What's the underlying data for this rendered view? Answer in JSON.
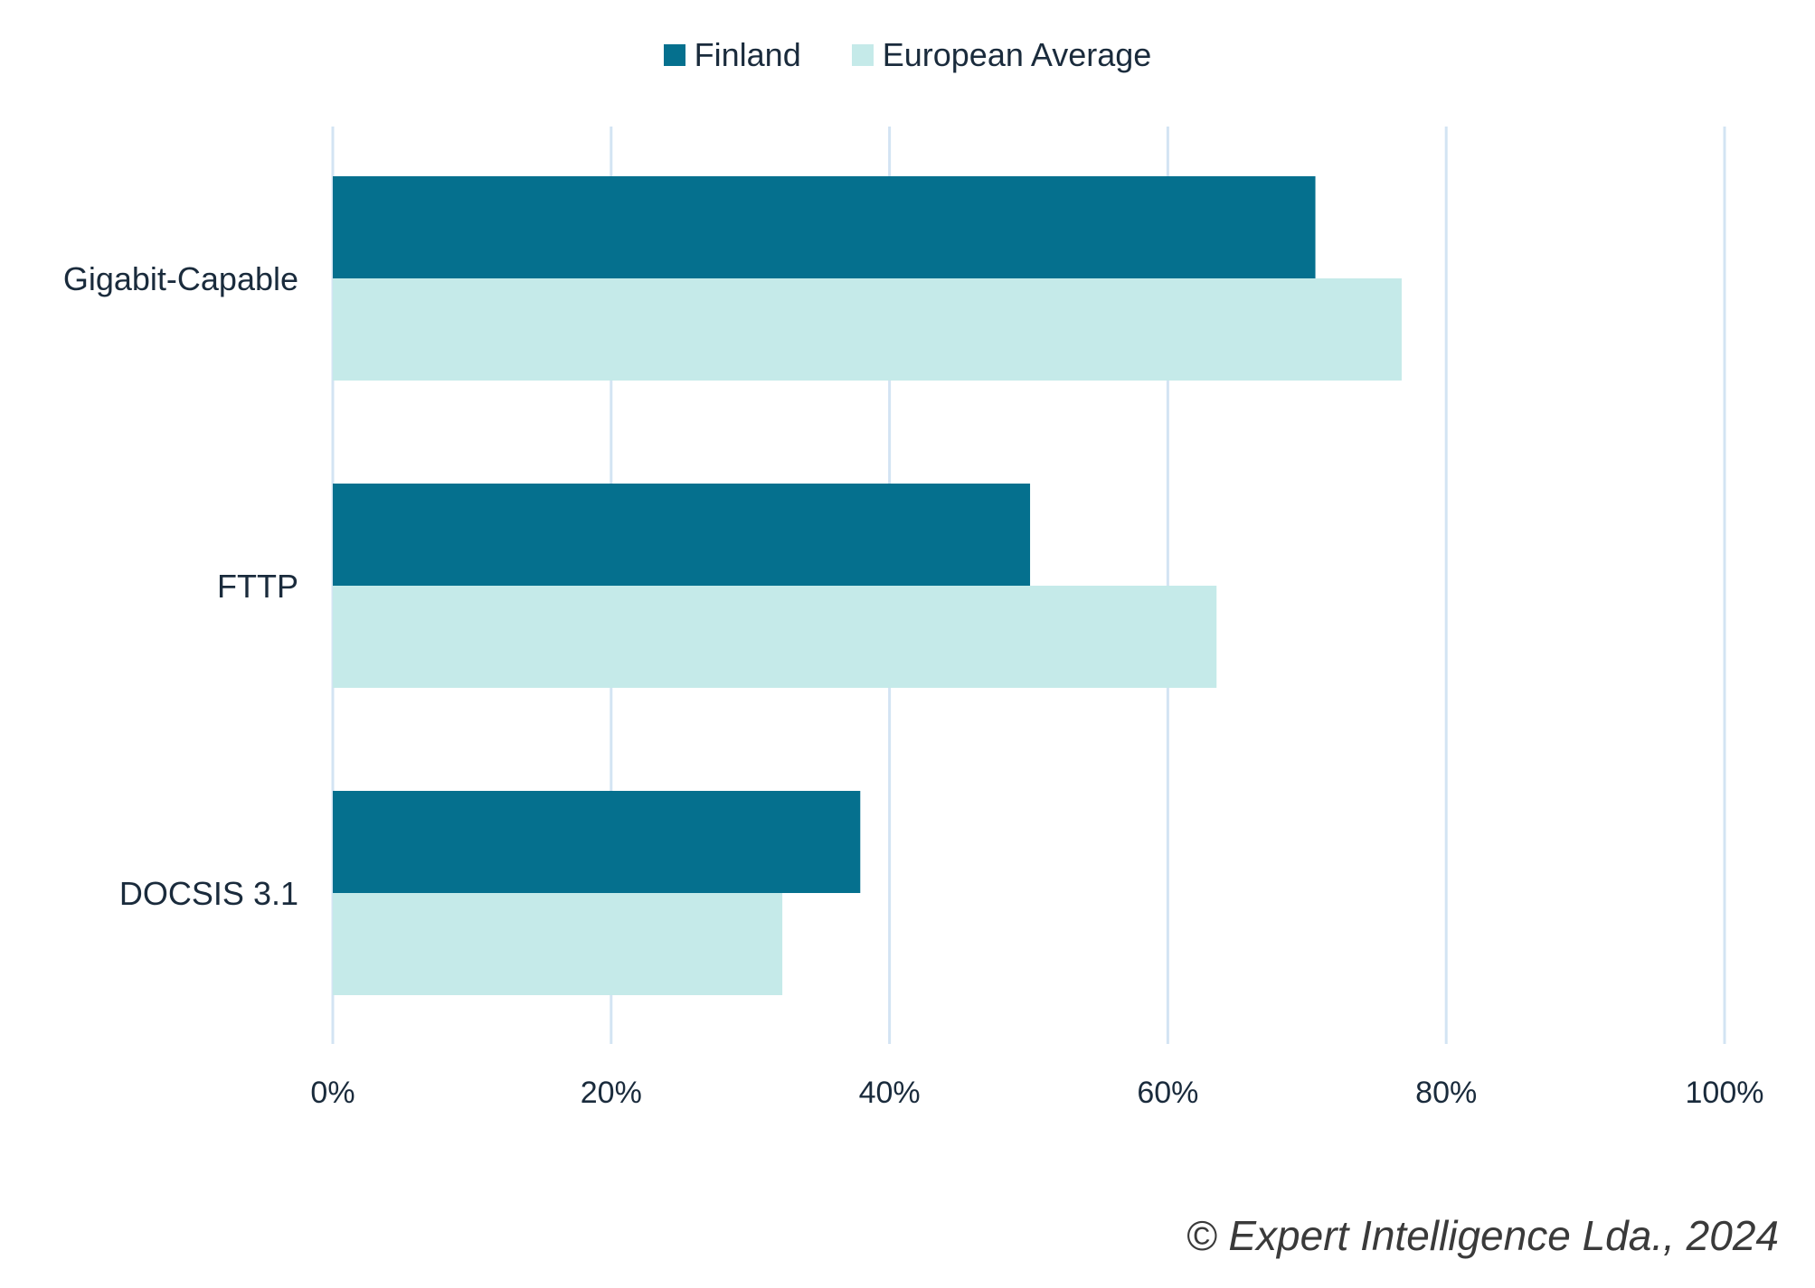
{
  "chart_data": {
    "type": "bar",
    "orientation": "horizontal",
    "categories": [
      "Gigabit-Capable",
      "FTTP",
      "DOCSIS 3.1"
    ],
    "series": [
      {
        "name": "Finland",
        "values": [
          70.6,
          50.1,
          37.9
        ],
        "color": "#05708e"
      },
      {
        "name": "European Average",
        "values": [
          76.8,
          63.5,
          32.3
        ],
        "color": "#c5eae9"
      }
    ],
    "xlim": [
      0,
      100
    ],
    "xticks": [
      0,
      20,
      40,
      60,
      80,
      100
    ],
    "tick_format": "%",
    "grid": true,
    "grid_color": "#d3e4f3",
    "legend_position": "top-center",
    "title": "",
    "xlabel": "",
    "ylabel": ""
  },
  "legend": {
    "finland_label": "Finland",
    "european_label": "European Average",
    "finland_color": "#05708e",
    "european_color": "#c5eae9"
  },
  "footer": {
    "copyright": "© Expert Intelligence Lda., 2024"
  }
}
